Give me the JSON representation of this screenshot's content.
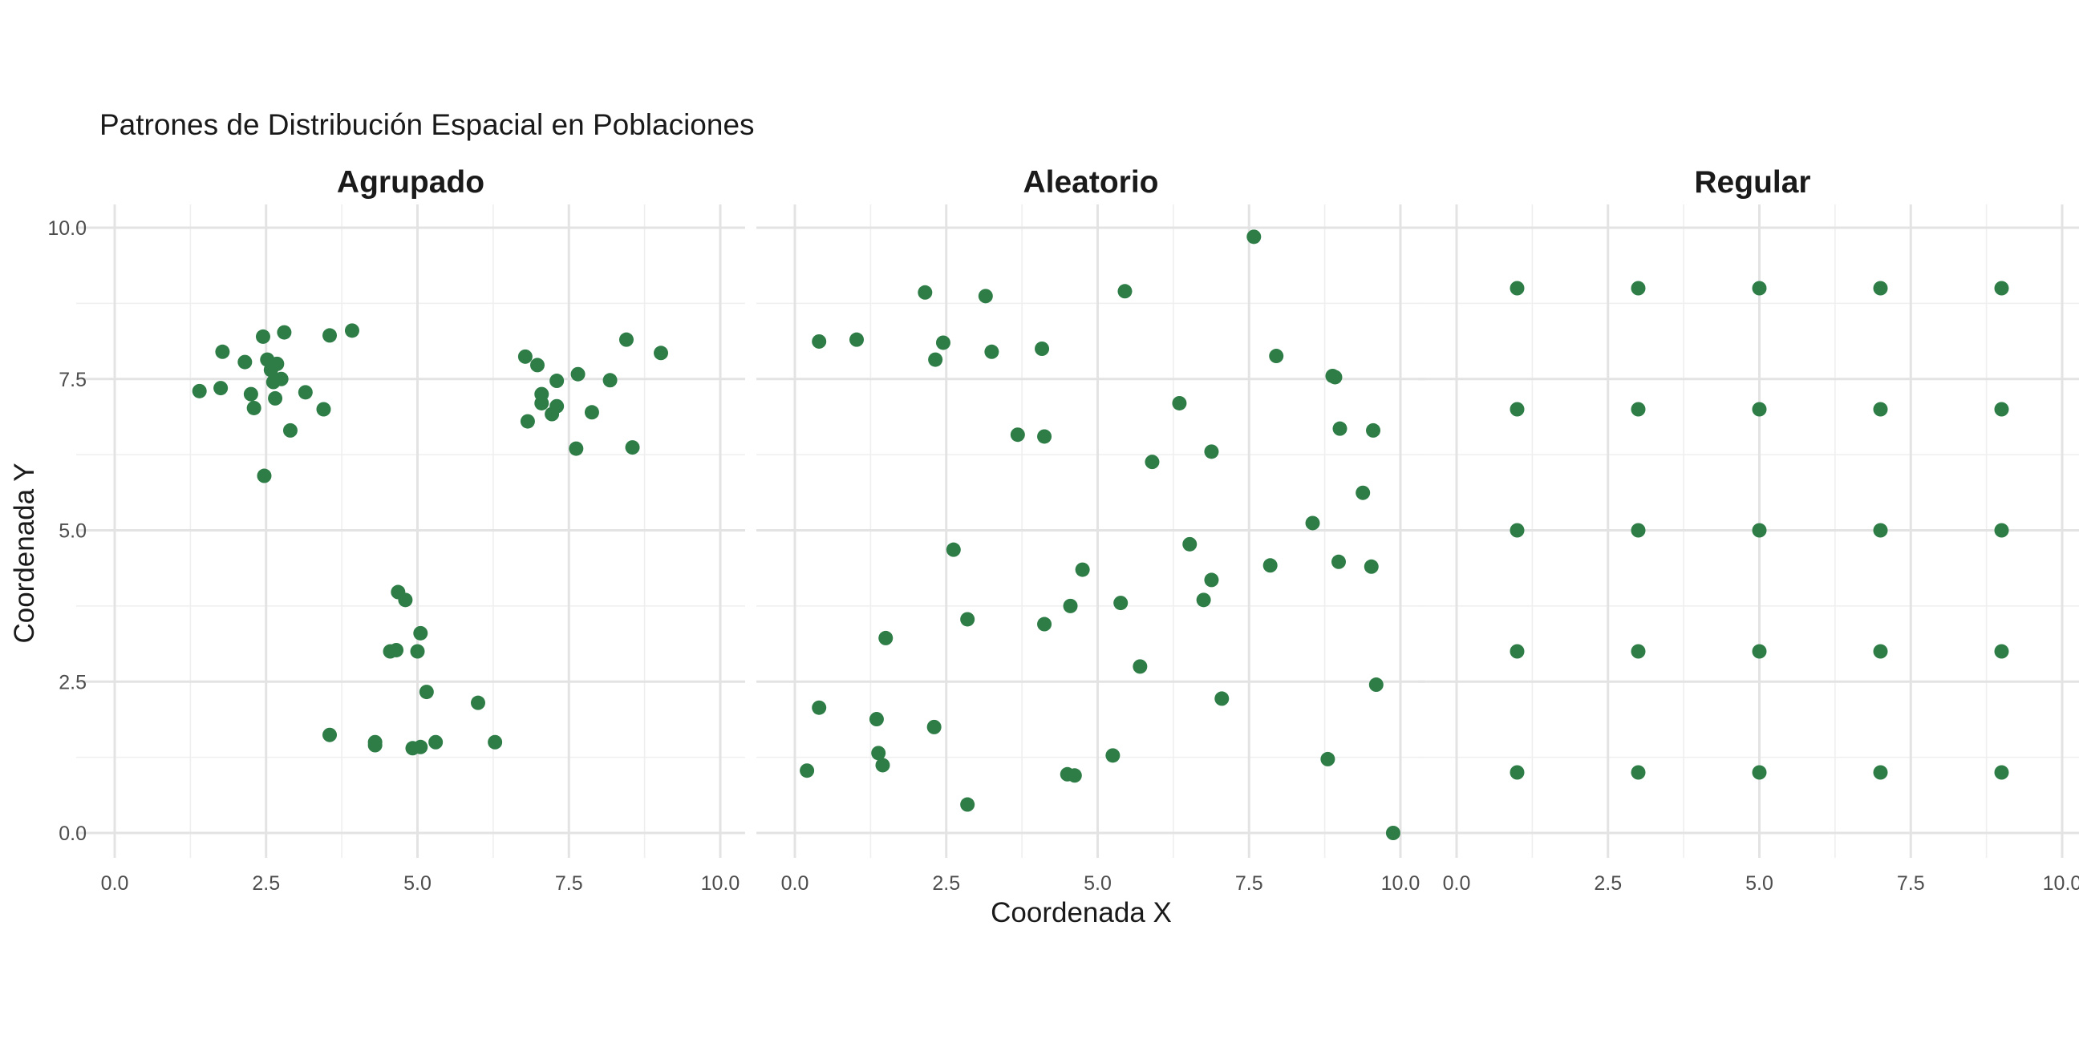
{
  "chart_data": {
    "type": "scatter",
    "title": "Patrones de Distribución Espacial en Poblaciones",
    "xlabel": "Coordenada X",
    "ylabel": "Coordenada Y",
    "xlim": [
      0,
      10
    ],
    "ylim": [
      0,
      10
    ],
    "x_ticks": [
      "0.0",
      "2.5",
      "5.0",
      "7.5",
      "10.0"
    ],
    "y_ticks": [
      "0.0",
      "2.5",
      "5.0",
      "7.5",
      "10.0"
    ],
    "grid": true,
    "point_color": "#2e7d47",
    "facets": [
      {
        "name": "Agrupado",
        "points": [
          [
            1.4,
            7.3
          ],
          [
            1.75,
            7.35
          ],
          [
            1.78,
            7.95
          ],
          [
            2.15,
            7.78
          ],
          [
            2.25,
            7.25
          ],
          [
            2.3,
            7.02
          ],
          [
            2.45,
            8.2
          ],
          [
            2.52,
            7.82
          ],
          [
            2.58,
            7.65
          ],
          [
            2.62,
            7.45
          ],
          [
            2.68,
            7.75
          ],
          [
            2.65,
            7.18
          ],
          [
            2.75,
            7.5
          ],
          [
            2.8,
            8.27
          ],
          [
            2.9,
            6.65
          ],
          [
            3.15,
            7.28
          ],
          [
            3.45,
            7.0
          ],
          [
            3.55,
            8.22
          ],
          [
            3.92,
            8.3
          ],
          [
            2.47,
            5.9
          ],
          [
            6.78,
            7.87
          ],
          [
            6.98,
            7.73
          ],
          [
            7.05,
            7.25
          ],
          [
            7.05,
            7.1
          ],
          [
            7.3,
            7.47
          ],
          [
            7.3,
            7.05
          ],
          [
            6.82,
            6.8
          ],
          [
            7.22,
            6.92
          ],
          [
            7.65,
            7.58
          ],
          [
            7.62,
            6.35
          ],
          [
            7.88,
            6.95
          ],
          [
            8.18,
            7.48
          ],
          [
            8.45,
            8.15
          ],
          [
            8.55,
            6.37
          ],
          [
            9.02,
            7.93
          ],
          [
            4.68,
            3.98
          ],
          [
            4.8,
            3.85
          ],
          [
            4.55,
            3.0
          ],
          [
            4.65,
            3.02
          ],
          [
            5.0,
            3.0
          ],
          [
            5.05,
            3.3
          ],
          [
            5.15,
            2.33
          ],
          [
            6.0,
            2.15
          ],
          [
            6.28,
            1.5
          ],
          [
            3.55,
            1.62
          ],
          [
            4.3,
            1.5
          ],
          [
            4.3,
            1.45
          ],
          [
            4.92,
            1.4
          ],
          [
            5.05,
            1.42
          ],
          [
            5.3,
            1.5
          ]
        ]
      },
      {
        "name": "Aleatorio",
        "points": [
          [
            0.4,
            8.12
          ],
          [
            1.02,
            8.15
          ],
          [
            2.15,
            8.93
          ],
          [
            2.45,
            8.1
          ],
          [
            2.32,
            7.82
          ],
          [
            3.15,
            8.87
          ],
          [
            3.25,
            7.95
          ],
          [
            4.08,
            8.0
          ],
          [
            5.45,
            8.95
          ],
          [
            7.58,
            9.85
          ],
          [
            7.95,
            7.88
          ],
          [
            8.88,
            7.55
          ],
          [
            8.92,
            7.53
          ],
          [
            6.35,
            7.1
          ],
          [
            3.68,
            6.58
          ],
          [
            4.12,
            6.55
          ],
          [
            5.9,
            6.13
          ],
          [
            6.88,
            6.3
          ],
          [
            9.0,
            6.68
          ],
          [
            9.55,
            6.65
          ],
          [
            8.55,
            5.12
          ],
          [
            9.38,
            5.62
          ],
          [
            2.62,
            4.68
          ],
          [
            6.52,
            4.77
          ],
          [
            4.75,
            4.35
          ],
          [
            6.88,
            4.18
          ],
          [
            7.85,
            4.42
          ],
          [
            8.98,
            4.48
          ],
          [
            9.52,
            4.4
          ],
          [
            4.12,
            3.45
          ],
          [
            4.55,
            3.75
          ],
          [
            5.38,
            3.8
          ],
          [
            6.75,
            3.85
          ],
          [
            2.85,
            3.53
          ],
          [
            1.5,
            3.22
          ],
          [
            5.7,
            2.75
          ],
          [
            7.05,
            2.22
          ],
          [
            9.6,
            2.45
          ],
          [
            0.4,
            2.07
          ],
          [
            1.35,
            1.88
          ],
          [
            2.3,
            1.75
          ],
          [
            1.38,
            1.32
          ],
          [
            1.45,
            1.12
          ],
          [
            0.2,
            1.03
          ],
          [
            4.5,
            0.97
          ],
          [
            4.62,
            0.95
          ],
          [
            5.25,
            1.28
          ],
          [
            8.8,
            1.22
          ],
          [
            2.85,
            0.47
          ],
          [
            9.88,
            0.0
          ]
        ]
      },
      {
        "name": "Regular",
        "points": [
          [
            1,
            9
          ],
          [
            3,
            9
          ],
          [
            5,
            9
          ],
          [
            7,
            9
          ],
          [
            9,
            9
          ],
          [
            1,
            7
          ],
          [
            3,
            7
          ],
          [
            5,
            7
          ],
          [
            7,
            7
          ],
          [
            9,
            7
          ],
          [
            1,
            5
          ],
          [
            3,
            5
          ],
          [
            5,
            5
          ],
          [
            7,
            5
          ],
          [
            9,
            5
          ],
          [
            1,
            3
          ],
          [
            3,
            3
          ],
          [
            5,
            3
          ],
          [
            7,
            3
          ],
          [
            9,
            3
          ],
          [
            1,
            1
          ],
          [
            3,
            1
          ],
          [
            5,
            1
          ],
          [
            7,
            1
          ],
          [
            9,
            1
          ]
        ]
      }
    ]
  }
}
